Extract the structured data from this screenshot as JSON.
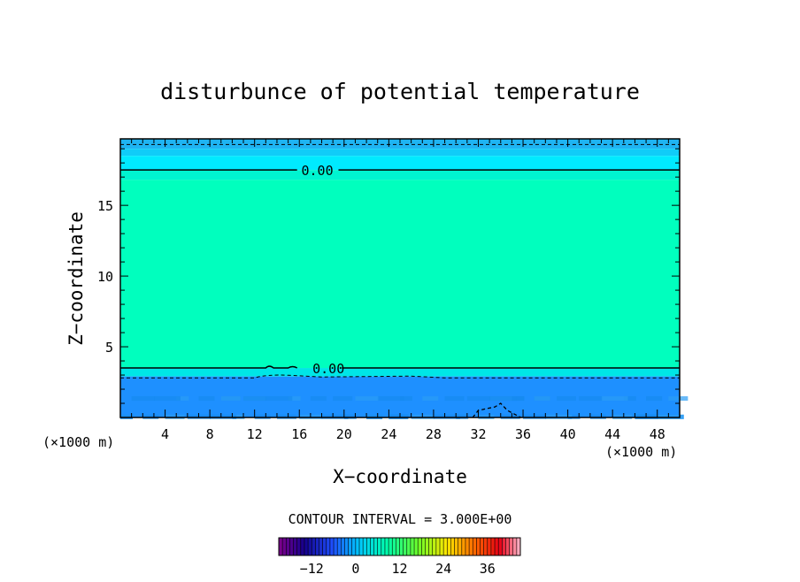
{
  "chart_data": {
    "type": "heatmap",
    "title": "disturbunce of potential temperature",
    "xlabel": "X−coordinate",
    "ylabel": "Z−coordinate",
    "x_unit_left": "(×1000 m)",
    "x_unit_right": "(×1000 m)",
    "xlim": [
      0,
      50
    ],
    "ylim": [
      0,
      19.7
    ],
    "x_ticks": [
      4,
      8,
      12,
      16,
      20,
      24,
      28,
      32,
      36,
      40,
      44,
      48
    ],
    "x_tick_labels": [
      "4",
      "8",
      "12",
      "16",
      "20",
      "24",
      "28",
      "32",
      "36",
      "40",
      "44",
      "48"
    ],
    "y_ticks": [
      5,
      10,
      15
    ],
    "y_tick_labels": [
      "5",
      "10",
      "15"
    ],
    "contour_interval_text": "CONTOUR INTERVAL = 3.000E+00",
    "contour_labels": [
      {
        "text": "0.00",
        "x": 16.5,
        "z": 17.5
      },
      {
        "text": "0.00",
        "x": 17.5,
        "z": 3.5
      }
    ],
    "contours": [
      {
        "value": 0,
        "style": "solid",
        "z": 17.5
      },
      {
        "value": 0,
        "style": "solid",
        "z": 3.5
      },
      {
        "value": -3,
        "style": "dashed",
        "z": 19.3
      },
      {
        "value": -3,
        "style": "dashed",
        "z": 2.8
      }
    ],
    "fill_bands": [
      {
        "z0": 19.0,
        "z1": 19.7,
        "color": "#1fb4f2"
      },
      {
        "z0": 18.5,
        "z1": 19.0,
        "color": "#10ccf8"
      },
      {
        "z0": 17.5,
        "z1": 18.5,
        "color": "#00eaff"
      },
      {
        "z0": 16.8,
        "z1": 17.5,
        "color": "#00f4d0"
      },
      {
        "z0": 3.5,
        "z1": 16.8,
        "color": "#00ffbe"
      },
      {
        "z0": 2.9,
        "z1": 3.5,
        "color": "#00e6e6"
      },
      {
        "z0": 0.0,
        "z1": 2.9,
        "color": "#1e90ff"
      }
    ],
    "colorbar": {
      "ticks": [
        "−12",
        "0",
        "12",
        "24",
        "36"
      ],
      "min": -21,
      "max": 45,
      "tick_values": [
        -12,
        0,
        12,
        24,
        36
      ]
    }
  }
}
